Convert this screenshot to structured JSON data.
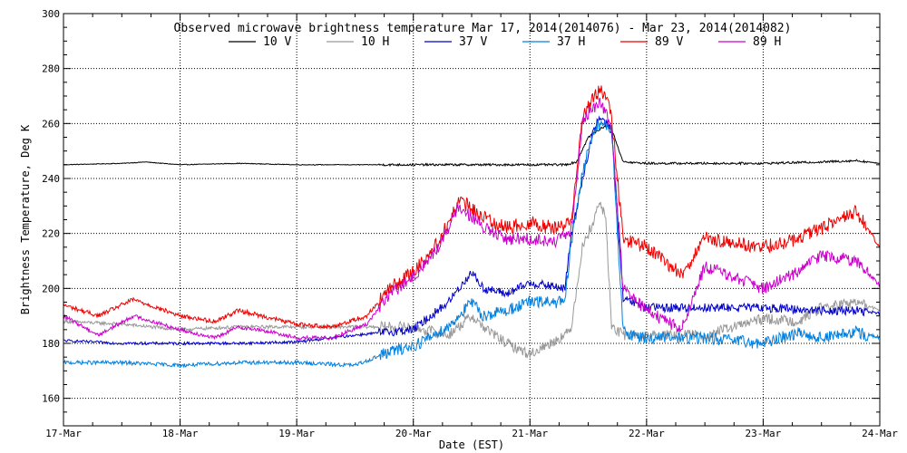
{
  "chart_data": {
    "type": "line",
    "title": "Observed microwave brightness temperature Mar 17, 2014(2014076) - Mar 23, 2014(2014082)",
    "xlabel": "Date (EST)",
    "ylabel": "Brightness Temperature, Deg K",
    "xlim": [
      0,
      7
    ],
    "ylim": [
      150,
      300
    ],
    "x_ticks": [
      0,
      1,
      2,
      3,
      4,
      5,
      6,
      7
    ],
    "x_tick_labels": [
      "17-Mar",
      "18-Mar",
      "19-Mar",
      "20-Mar",
      "21-Mar",
      "22-Mar",
      "23-Mar",
      "24-Mar"
    ],
    "y_ticks": [
      160,
      180,
      200,
      220,
      240,
      260,
      280,
      300
    ],
    "y_tick_labels": [
      "160",
      "180",
      "200",
      "220",
      "240",
      "260",
      "280",
      "300"
    ],
    "grid": true,
    "legend_position": "top",
    "series": [
      {
        "name": "10 V",
        "color": "#000000",
        "x": [
          0,
          0.5,
          0.7,
          1.0,
          1.5,
          2.0,
          2.5,
          3.0,
          3.5,
          3.9,
          4.2,
          4.3,
          4.4,
          4.5,
          4.6,
          4.65,
          4.7,
          4.8,
          5.0,
          5.5,
          6.0,
          6.5,
          6.8,
          7.0
        ],
        "values": [
          245,
          245.5,
          246,
          245,
          245.5,
          245,
          245,
          245,
          245,
          245,
          245,
          245,
          246,
          255,
          258,
          259,
          258,
          246,
          245.5,
          245.5,
          245.5,
          246,
          246.5,
          245.5
        ]
      },
      {
        "name": "10 H",
        "color": "#999999",
        "x": [
          0,
          0.5,
          1.0,
          1.5,
          2.0,
          2.5,
          3.0,
          3.3,
          3.5,
          3.6,
          3.8,
          4.0,
          4.3,
          4.35,
          4.45,
          4.55,
          4.6,
          4.65,
          4.7,
          4.8,
          5.0,
          5.5,
          6.0,
          6.3,
          6.5,
          6.8,
          7.0
        ],
        "values": [
          188,
          187,
          185,
          186,
          186,
          186,
          186,
          183,
          190,
          186,
          180,
          176,
          183,
          185,
          215,
          225,
          232,
          225,
          186,
          183,
          183,
          183,
          189,
          188,
          193,
          195,
          192
        ]
      },
      {
        "name": "37 V",
        "color": "#0000cc",
        "x": [
          0,
          0.5,
          1.0,
          1.5,
          2.0,
          2.5,
          3.0,
          3.3,
          3.5,
          3.6,
          3.8,
          4.0,
          4.3,
          4.35,
          4.45,
          4.55,
          4.6,
          4.7,
          4.8,
          5.0,
          5.5,
          6.0,
          6.5,
          6.8,
          7.0
        ],
        "values": [
          181,
          180,
          180,
          180,
          180.5,
          183,
          185,
          195,
          206,
          200,
          198,
          202,
          200,
          218,
          240,
          258,
          262,
          258,
          196,
          193,
          193,
          193,
          192,
          192,
          191
        ]
      },
      {
        "name": "37 H",
        "color": "#0080e0",
        "x": [
          0,
          0.5,
          1.0,
          1.5,
          2.0,
          2.5,
          2.8,
          3.0,
          3.3,
          3.5,
          3.6,
          3.8,
          4.0,
          4.3,
          4.35,
          4.45,
          4.55,
          4.6,
          4.7,
          4.8,
          5.0,
          5.5,
          6.0,
          6.3,
          6.5,
          6.8,
          7.0
        ],
        "values": [
          173,
          173,
          172,
          173,
          173,
          172,
          177,
          179,
          186,
          195,
          190,
          192,
          195,
          195,
          215,
          242,
          258,
          260,
          258,
          184,
          182,
          182,
          180,
          184,
          182,
          184,
          182
        ]
      },
      {
        "name": "89 V",
        "color": "#ee0000",
        "x": [
          0,
          0.3,
          0.6,
          1.0,
          1.3,
          1.5,
          1.8,
          2.0,
          2.3,
          2.6,
          2.8,
          3.0,
          3.2,
          3.4,
          3.6,
          3.8,
          4.0,
          4.2,
          4.35,
          4.45,
          4.55,
          4.6,
          4.65,
          4.7,
          4.8,
          5.0,
          5.3,
          5.5,
          6.0,
          6.3,
          6.5,
          6.8,
          7.0
        ],
        "values": [
          194,
          190,
          196,
          190,
          188,
          192,
          189,
          187,
          186,
          190,
          200,
          206,
          216,
          232,
          226,
          222,
          224,
          222,
          224,
          262,
          270,
          272,
          270,
          262,
          218,
          215,
          205,
          218,
          215,
          218,
          222,
          228,
          215
        ]
      },
      {
        "name": "89 H",
        "color": "#cc00cc",
        "x": [
          0,
          0.3,
          0.6,
          1.0,
          1.3,
          1.5,
          1.8,
          2.0,
          2.3,
          2.6,
          2.8,
          3.0,
          3.2,
          3.4,
          3.6,
          3.8,
          4.0,
          4.2,
          4.35,
          4.45,
          4.55,
          4.6,
          4.65,
          4.7,
          4.8,
          5.0,
          5.3,
          5.5,
          6.0,
          6.3,
          6.5,
          6.8,
          7.0
        ],
        "values": [
          190,
          183,
          190,
          185,
          182,
          186,
          184,
          182,
          182,
          187,
          198,
          204,
          214,
          230,
          222,
          218,
          218,
          217,
          220,
          260,
          266,
          268,
          264,
          258,
          200,
          192,
          185,
          208,
          200,
          206,
          212,
          210,
          201
        ]
      }
    ]
  }
}
